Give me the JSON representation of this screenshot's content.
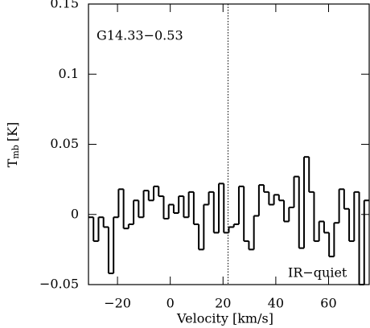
{
  "chart_data": {
    "type": "histogram",
    "xlabel": "Velocity [km/s]",
    "ylabel": "T",
    "ylabel_sub": "mb",
    "ylabel_unit": "[K]",
    "annotations": [
      "G14.33−0.53",
      "IR−quiet"
    ],
    "vline": 21.9,
    "color": "#000000",
    "xlim": [
      -31.0,
      75.4
    ],
    "ylim": [
      -0.05,
      0.15
    ],
    "xticks": [
      {
        "value": -20,
        "label": "−20"
      },
      0,
      20,
      40,
      60
    ],
    "yticks": [
      {
        "value": -0.05,
        "label": "−0.05"
      },
      0,
      0.05,
      0.1,
      0.15
    ],
    "bins": [
      -31.0,
      -29.1,
      -27.2,
      -25.3,
      -23.4,
      -21.5,
      -19.6,
      -17.7,
      -15.8,
      -13.9,
      -12.0,
      -10.1,
      -8.2,
      -6.3,
      -4.4,
      -2.5,
      -0.6,
      1.3,
      3.2,
      5.1,
      7.0,
      8.9,
      10.8,
      12.7,
      14.6,
      16.5,
      18.4,
      20.3,
      22.2,
      24.1,
      26.0,
      27.9,
      29.8,
      31.7,
      33.6,
      35.5,
      37.4,
      39.3,
      41.2,
      43.1,
      45.0,
      46.9,
      48.8,
      50.7,
      52.6,
      54.5,
      56.4,
      58.3,
      60.2,
      62.1,
      64.0,
      65.9,
      67.8,
      69.7,
      71.6,
      73.5,
      75.4
    ],
    "values": [
      -0.002,
      -0.019,
      -0.002,
      -0.009,
      -0.042,
      -0.002,
      0.018,
      -0.01,
      -0.007,
      0.01,
      -0.002,
      0.017,
      0.01,
      0.02,
      0.013,
      -0.003,
      0.007,
      0.001,
      0.013,
      -0.002,
      0.016,
      -0.007,
      -0.025,
      0.007,
      0.016,
      -0.013,
      0.022,
      -0.013,
      -0.009,
      -0.007,
      0.02,
      -0.019,
      -0.025,
      -0.001,
      0.021,
      0.016,
      0.007,
      0.014,
      0.01,
      -0.005,
      0.005,
      0.027,
      -0.024,
      0.041,
      0.016,
      -0.019,
      -0.005,
      -0.013,
      -0.03,
      -0.006,
      0.018,
      0.004,
      -0.019,
      0.016,
      -0.05,
      0.01
    ]
  }
}
